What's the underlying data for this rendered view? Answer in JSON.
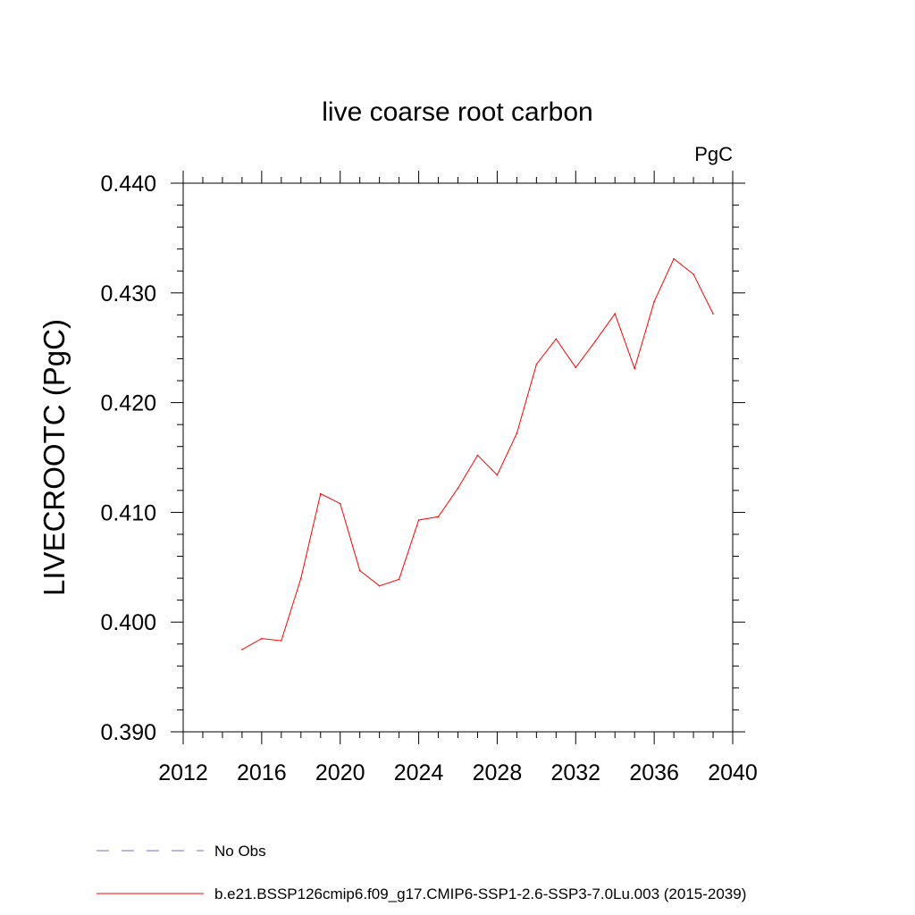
{
  "chart_data": {
    "type": "line",
    "title": "live coarse root carbon",
    "units_label": "PgC",
    "ylabel": "LIVECROOTC  (PgC)",
    "xlabel": "",
    "xlim": [
      2012,
      2040
    ],
    "ylim": [
      0.39,
      0.44
    ],
    "x_ticks": [
      2012,
      2016,
      2020,
      2024,
      2028,
      2032,
      2036,
      2040
    ],
    "x_tick_labels": [
      "2012",
      "2016",
      "2020",
      "2024",
      "2028",
      "2032",
      "2036",
      "2040"
    ],
    "y_ticks": [
      0.39,
      0.4,
      0.41,
      0.42,
      0.43,
      0.44
    ],
    "y_tick_labels": [
      "0.390",
      "0.400",
      "0.410",
      "0.420",
      "0.430",
      "0.440"
    ],
    "grid": false,
    "legend_position": "bottom",
    "series": [
      {
        "name": "b.e21.BSSP126cmip6.f09_g17.CMIP6-SSP1-2.6-SSP3-7.0Lu.003 (2015-2039)",
        "color": "#ff0000",
        "style": "solid",
        "x": [
          2015,
          2016,
          2017,
          2018,
          2019,
          2020,
          2021,
          2022,
          2023,
          2024,
          2025,
          2026,
          2027,
          2028,
          2029,
          2030,
          2031,
          2032,
          2033,
          2034,
          2035,
          2036,
          2037,
          2038,
          2039
        ],
        "y": [
          0.3975,
          0.3985,
          0.3983,
          0.404,
          0.4117,
          0.4108,
          0.4047,
          0.4033,
          0.4039,
          0.4093,
          0.4096,
          0.4122,
          0.4152,
          0.4134,
          0.4172,
          0.4235,
          0.4258,
          0.4232,
          0.4256,
          0.4281,
          0.4231,
          0.4292,
          0.4331,
          0.4317,
          0.4281
        ]
      },
      {
        "name": "No Obs",
        "color": "#7b68c8",
        "style": "dashed",
        "x": [],
        "y": []
      }
    ]
  }
}
